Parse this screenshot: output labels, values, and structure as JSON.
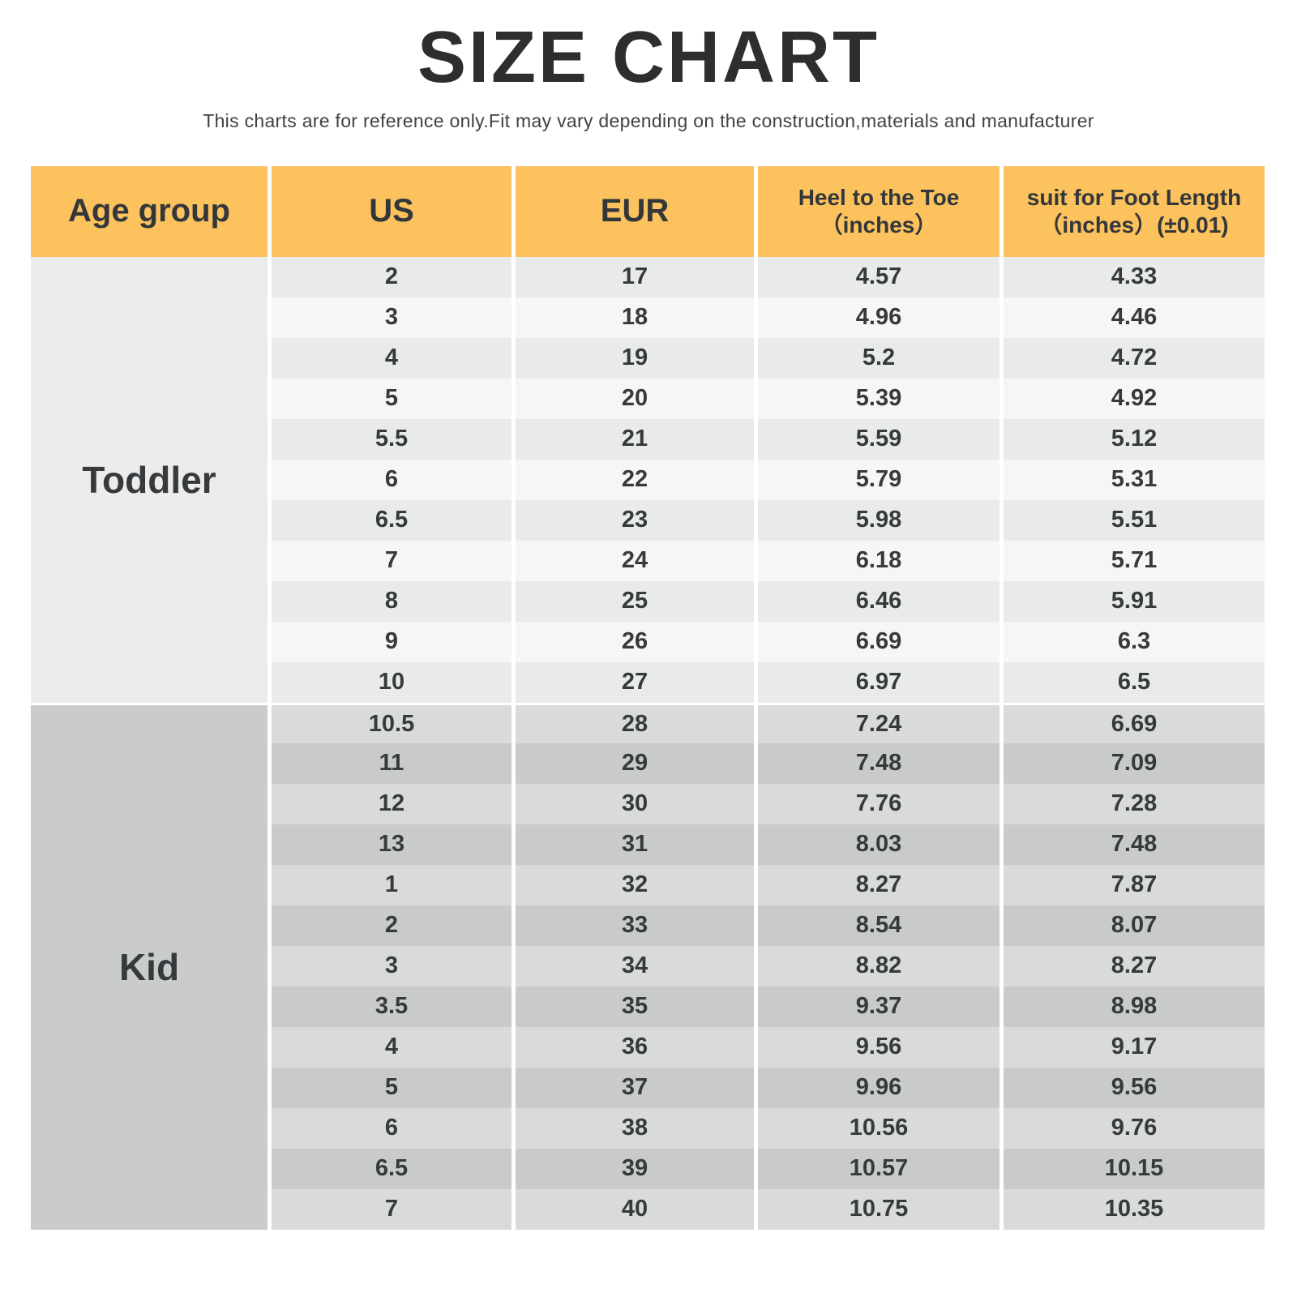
{
  "page": {
    "title": "SIZE CHART",
    "subtitle": "This charts are for reference only.Fit may vary depending on the construction,materials and manufacturer"
  },
  "colors": {
    "header_bg": "#fbc25e",
    "title": "#2e2e2e",
    "text": "#3a3a3a",
    "toddler_label_bg": "#ebeceb",
    "toddler_row_odd": "#e9ebea",
    "toddler_row_even": "#f5f6f5",
    "kid_label_bg": "#c9ccca",
    "kid_row_odd": "#d9dbda",
    "kid_row_even": "#c8cbca"
  },
  "chart_data": {
    "type": "table",
    "title": "SIZE CHART",
    "subtitle": "This charts are for reference only.Fit may vary depending on the construction,materials and manufacturer",
    "columns": [
      {
        "id": "age-group",
        "lines": [
          "Age group"
        ]
      },
      {
        "id": "us",
        "lines": [
          "US"
        ]
      },
      {
        "id": "eur",
        "lines": [
          "EUR"
        ]
      },
      {
        "id": "heel-to-toe",
        "lines": [
          "Heel to the Toe",
          "（inches）"
        ]
      },
      {
        "id": "foot-length",
        "lines": [
          "suit for Foot Length",
          "（inches）(±0.01)"
        ]
      }
    ],
    "sections": [
      {
        "age_group": "Toddler",
        "rows": [
          [
            "2",
            "17",
            "4.57",
            "4.33"
          ],
          [
            "3",
            "18",
            "4.96",
            "4.46"
          ],
          [
            "4",
            "19",
            "5.2",
            "4.72"
          ],
          [
            "5",
            "20",
            "5.39",
            "4.92"
          ],
          [
            "5.5",
            "21",
            "5.59",
            "5.12"
          ],
          [
            "6",
            "22",
            "5.79",
            "5.31"
          ],
          [
            "6.5",
            "23",
            "5.98",
            "5.51"
          ],
          [
            "7",
            "24",
            "6.18",
            "5.71"
          ],
          [
            "8",
            "25",
            "6.46",
            "5.91"
          ],
          [
            "9",
            "26",
            "6.69",
            "6.3"
          ],
          [
            "10",
            "27",
            "6.97",
            "6.5"
          ]
        ]
      },
      {
        "age_group": "Kid",
        "rows": [
          [
            "10.5",
            "28",
            "7.24",
            "6.69"
          ],
          [
            "11",
            "29",
            "7.48",
            "7.09"
          ],
          [
            "12",
            "30",
            "7.76",
            "7.28"
          ],
          [
            "13",
            "31",
            "8.03",
            "7.48"
          ],
          [
            "1",
            "32",
            "8.27",
            "7.87"
          ],
          [
            "2",
            "33",
            "8.54",
            "8.07"
          ],
          [
            "3",
            "34",
            "8.82",
            "8.27"
          ],
          [
            "3.5",
            "35",
            "9.37",
            "8.98"
          ],
          [
            "4",
            "36",
            "9.56",
            "9.17"
          ],
          [
            "5",
            "37",
            "9.96",
            "9.56"
          ],
          [
            "6",
            "38",
            "10.56",
            "9.76"
          ],
          [
            "6.5",
            "39",
            "10.57",
            "10.15"
          ],
          [
            "7",
            "40",
            "10.75",
            "10.35"
          ]
        ]
      }
    ]
  }
}
